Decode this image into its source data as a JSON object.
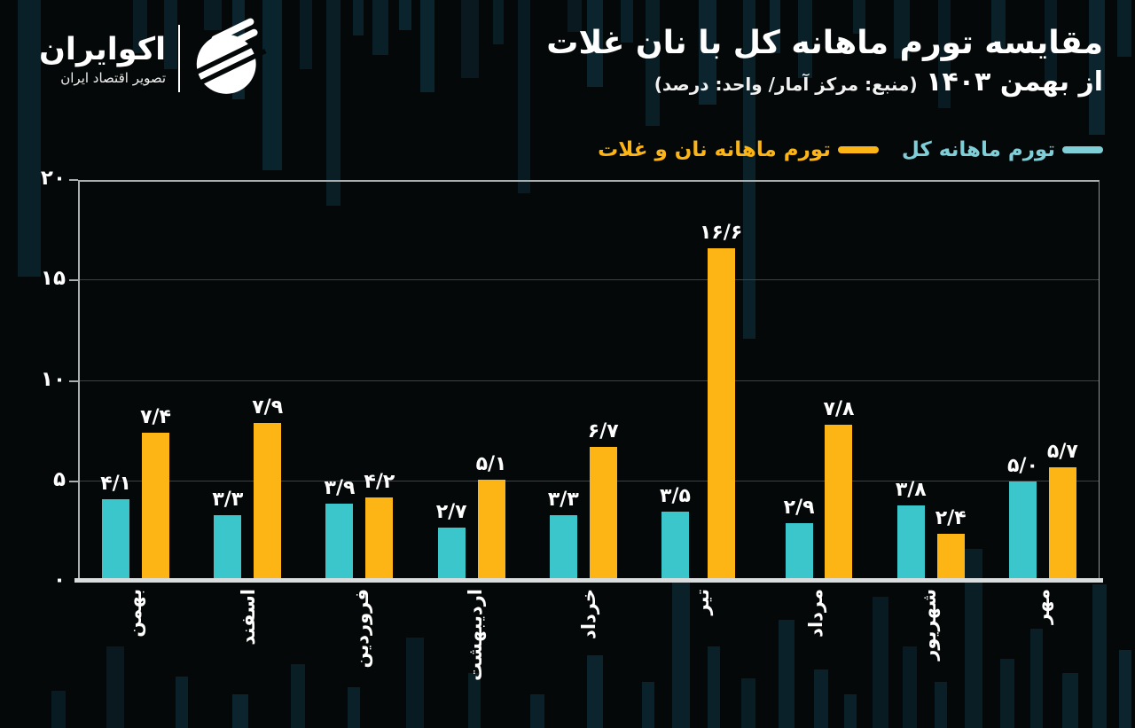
{
  "brand": {
    "name": "اکوایران",
    "tagline": "تصویر اقتصاد ایران"
  },
  "header": {
    "title": "مقایسه تورم ماهانه کل با نان غلات",
    "subtitle_period": "از بهمن ۱۴۰۳",
    "subtitle_note": "(منبع: مرکز آمار/ واحد: درصد)"
  },
  "legend": {
    "total": "تورم ماهانه کل",
    "bread": "تورم ماهانه نان و غلات"
  },
  "colors": {
    "total_series": "#3BC6CC",
    "bread_series": "#FCB514",
    "legend_total_text": "#7FCFD8",
    "legend_bread_text": "#FCB514",
    "background": "#050808",
    "background_pattern": "#0C2833",
    "grid": "#3C4143",
    "axis": "#A9AFAF",
    "baseline": "#D9DDDD",
    "text": "#FFFFFF"
  },
  "chart_data": {
    "type": "bar",
    "title": "مقایسه تورم ماهانه کل با نان غلات از بهمن ۱۴۰۳",
    "unit": "درصد",
    "source": "مرکز آمار",
    "categories": [
      "بهمن",
      "اسفند",
      "فروردین",
      "اردیبهشت",
      "خرداد",
      "تیر",
      "مرداد",
      "شهریور",
      "مهر"
    ],
    "series": [
      {
        "name": "تورم ماهانه کل",
        "color": "#3BC6CC",
        "values": [
          4.1,
          3.3,
          3.9,
          2.7,
          3.3,
          3.5,
          2.9,
          3.8,
          5.0
        ],
        "value_labels": [
          "۴/۱",
          "۳/۳",
          "۳/۹",
          "۲/۷",
          "۳/۳",
          "۳/۵",
          "۲/۹",
          "۳/۸",
          "۵/۰"
        ]
      },
      {
        "name": "تورم ماهانه نان و غلات",
        "color": "#FCB514",
        "values": [
          7.4,
          7.9,
          4.2,
          5.1,
          6.7,
          16.6,
          7.8,
          2.4,
          5.7
        ],
        "value_labels": [
          "۷/۴",
          "۷/۹",
          "۴/۲",
          "۵/۱",
          "۶/۷",
          "۱۶/۶",
          "۷/۸",
          "۲/۴",
          "۵/۷"
        ]
      }
    ],
    "ylim": [
      0,
      20
    ],
    "yticks": [
      {
        "value": 0,
        "label": "۰"
      },
      {
        "value": 5,
        "label": "۵"
      },
      {
        "value": 10,
        "label": "۱۰"
      },
      {
        "value": 15,
        "label": "۱۵"
      },
      {
        "value": 20,
        "label": "۲۰"
      }
    ],
    "grid": true,
    "legend_position": "top-right",
    "x_label_rotation": -90
  }
}
